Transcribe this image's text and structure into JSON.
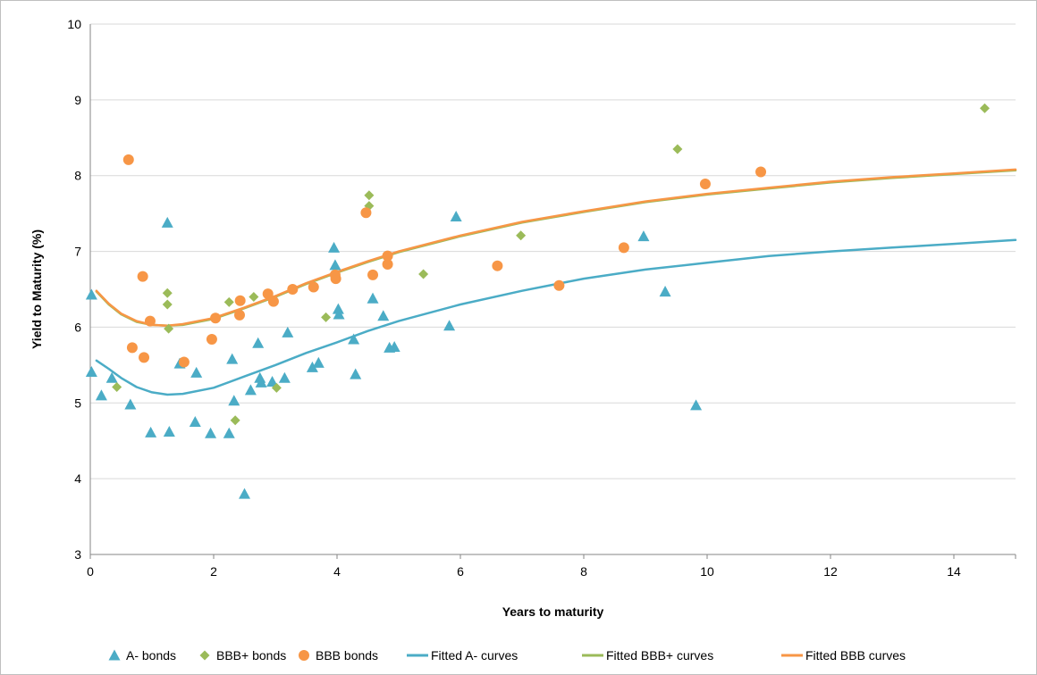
{
  "chart_data": {
    "type": "scatter",
    "xlabel": "Years to maturity",
    "ylabel": "Yield to Maturity (%)",
    "xlim": [
      0,
      15
    ],
    "ylim": [
      3,
      10
    ],
    "xticks": [
      0,
      2,
      4,
      6,
      8,
      10,
      12,
      14
    ],
    "yticks": [
      3,
      4,
      5,
      6,
      7,
      8,
      9,
      10
    ],
    "grid": "horizontal",
    "legend_position": "bottom",
    "series": [
      {
        "name": "A- bonds",
        "kind": "scatter",
        "marker": "triangle",
        "color": "#4bacc6",
        "points": [
          [
            0.02,
            6.43
          ],
          [
            0.02,
            5.41
          ],
          [
            0.18,
            5.1
          ],
          [
            0.35,
            5.33
          ],
          [
            0.65,
            4.98
          ],
          [
            0.98,
            4.61
          ],
          [
            1.25,
            7.38
          ],
          [
            1.28,
            4.62
          ],
          [
            1.45,
            5.52
          ],
          [
            1.7,
            4.75
          ],
          [
            1.72,
            5.4
          ],
          [
            1.95,
            4.6
          ],
          [
            2.25,
            4.6
          ],
          [
            2.3,
            5.58
          ],
          [
            2.33,
            5.03
          ],
          [
            2.5,
            3.8
          ],
          [
            2.6,
            5.17
          ],
          [
            2.72,
            5.79
          ],
          [
            2.75,
            5.33
          ],
          [
            2.77,
            5.27
          ],
          [
            2.95,
            5.28
          ],
          [
            3.15,
            5.33
          ],
          [
            3.2,
            5.93
          ],
          [
            3.6,
            5.47
          ],
          [
            3.7,
            5.53
          ],
          [
            3.95,
            7.05
          ],
          [
            3.97,
            6.82
          ],
          [
            4.02,
            6.24
          ],
          [
            4.03,
            6.17
          ],
          [
            4.27,
            5.84
          ],
          [
            4.3,
            5.38
          ],
          [
            4.58,
            6.38
          ],
          [
            4.75,
            6.15
          ],
          [
            4.85,
            5.73
          ],
          [
            4.93,
            5.74
          ],
          [
            5.82,
            6.02
          ],
          [
            5.93,
            7.46
          ],
          [
            8.97,
            7.2
          ],
          [
            9.32,
            6.47
          ],
          [
            9.82,
            4.97
          ]
        ]
      },
      {
        "name": "BBB+ bonds",
        "kind": "scatter",
        "marker": "diamond",
        "color": "#9bbb59",
        "points": [
          [
            0.43,
            5.21
          ],
          [
            1.25,
            6.45
          ],
          [
            1.25,
            6.3
          ],
          [
            1.27,
            5.98
          ],
          [
            2.25,
            6.33
          ],
          [
            2.35,
            4.77
          ],
          [
            2.65,
            6.4
          ],
          [
            3.02,
            5.2
          ],
          [
            3.82,
            6.13
          ],
          [
            4.52,
            7.74
          ],
          [
            4.52,
            7.6
          ],
          [
            5.4,
            6.7
          ],
          [
            6.98,
            7.21
          ],
          [
            9.52,
            8.35
          ],
          [
            14.5,
            8.89
          ]
        ]
      },
      {
        "name": "BBB bonds",
        "kind": "scatter",
        "marker": "circle",
        "color": "#f79646",
        "points": [
          [
            0.62,
            8.21
          ],
          [
            0.68,
            5.73
          ],
          [
            0.85,
            6.67
          ],
          [
            0.87,
            5.6
          ],
          [
            0.97,
            6.08
          ],
          [
            1.52,
            5.54
          ],
          [
            1.97,
            5.84
          ],
          [
            2.03,
            6.12
          ],
          [
            2.42,
            6.16
          ],
          [
            2.43,
            6.35
          ],
          [
            2.88,
            6.44
          ],
          [
            2.97,
            6.34
          ],
          [
            3.28,
            6.5
          ],
          [
            3.62,
            6.53
          ],
          [
            3.97,
            6.69
          ],
          [
            3.98,
            6.64
          ],
          [
            4.47,
            7.51
          ],
          [
            4.58,
            6.69
          ],
          [
            4.82,
            6.94
          ],
          [
            4.82,
            6.83
          ],
          [
            6.6,
            6.81
          ],
          [
            7.6,
            6.55
          ],
          [
            8.65,
            7.05
          ],
          [
            9.97,
            7.89
          ],
          [
            10.87,
            8.05
          ]
        ]
      },
      {
        "name": "Fitted A- curves",
        "kind": "line",
        "color": "#4bacc6",
        "points": [
          [
            0.1,
            5.56
          ],
          [
            0.3,
            5.45
          ],
          [
            0.5,
            5.33
          ],
          [
            0.75,
            5.21
          ],
          [
            1.0,
            5.14
          ],
          [
            1.25,
            5.11
          ],
          [
            1.5,
            5.12
          ],
          [
            2.0,
            5.2
          ],
          [
            2.5,
            5.35
          ],
          [
            3.0,
            5.5
          ],
          [
            3.5,
            5.66
          ],
          [
            4.0,
            5.8
          ],
          [
            4.5,
            5.95
          ],
          [
            5.0,
            6.08
          ],
          [
            6.0,
            6.3
          ],
          [
            7.0,
            6.48
          ],
          [
            8.0,
            6.64
          ],
          [
            9.0,
            6.76
          ],
          [
            10.0,
            6.85
          ],
          [
            11.0,
            6.94
          ],
          [
            12.0,
            7.0
          ],
          [
            13.0,
            7.05
          ],
          [
            14.0,
            7.1
          ],
          [
            15.0,
            7.15
          ]
        ]
      },
      {
        "name": "Fitted BBB+ curves",
        "kind": "line",
        "color": "#9bbb59",
        "points": [
          [
            0.1,
            6.47
          ],
          [
            0.3,
            6.3
          ],
          [
            0.5,
            6.17
          ],
          [
            0.75,
            6.07
          ],
          [
            1.0,
            6.03
          ],
          [
            1.25,
            6.02
          ],
          [
            1.5,
            6.03
          ],
          [
            2.0,
            6.11
          ],
          [
            2.5,
            6.25
          ],
          [
            3.0,
            6.4
          ],
          [
            3.5,
            6.57
          ],
          [
            4.0,
            6.72
          ],
          [
            4.5,
            6.86
          ],
          [
            5.0,
            6.99
          ],
          [
            6.0,
            7.2
          ],
          [
            7.0,
            7.38
          ],
          [
            8.0,
            7.52
          ],
          [
            9.0,
            7.65
          ],
          [
            10.0,
            7.75
          ],
          [
            11.0,
            7.83
          ],
          [
            12.0,
            7.91
          ],
          [
            13.0,
            7.97
          ],
          [
            14.0,
            8.02
          ],
          [
            15.0,
            8.07
          ]
        ]
      },
      {
        "name": "Fitted BBB curves",
        "kind": "line",
        "color": "#f79646",
        "points": [
          [
            0.1,
            6.48
          ],
          [
            0.3,
            6.31
          ],
          [
            0.5,
            6.18
          ],
          [
            0.75,
            6.08
          ],
          [
            1.0,
            6.03
          ],
          [
            1.25,
            6.02
          ],
          [
            1.5,
            6.04
          ],
          [
            2.0,
            6.12
          ],
          [
            2.5,
            6.26
          ],
          [
            3.0,
            6.41
          ],
          [
            3.5,
            6.58
          ],
          [
            4.0,
            6.73
          ],
          [
            4.5,
            6.87
          ],
          [
            5.0,
            7.0
          ],
          [
            6.0,
            7.21
          ],
          [
            7.0,
            7.39
          ],
          [
            8.0,
            7.53
          ],
          [
            9.0,
            7.66
          ],
          [
            10.0,
            7.76
          ],
          [
            11.0,
            7.84
          ],
          [
            12.0,
            7.92
          ],
          [
            13.0,
            7.98
          ],
          [
            14.0,
            8.03
          ],
          [
            15.0,
            8.08
          ]
        ]
      }
    ]
  }
}
